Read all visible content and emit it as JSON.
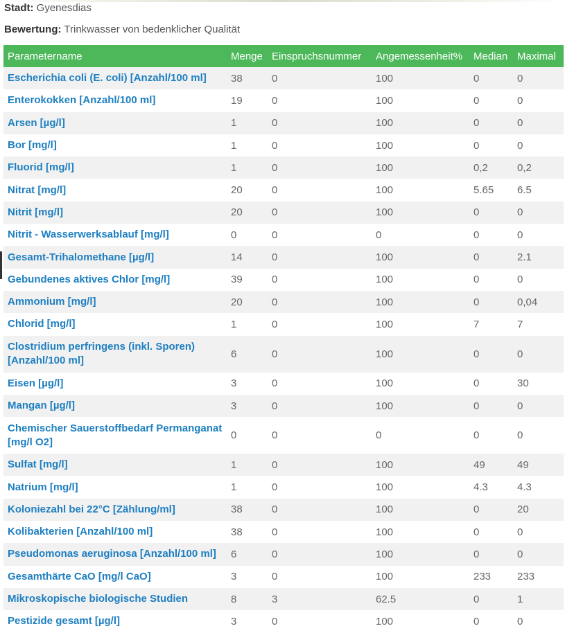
{
  "page": {
    "stadt_label": "Stadt:",
    "stadt_value": "Gyenesdias",
    "bewertung_label": "Bewertung:",
    "bewertung_value": "Trinkwasser von bedenklicher Qualität"
  },
  "colors": {
    "header_bg": "#4cb85a",
    "link": "#1e7fc1",
    "stripe": "#f1f1f1"
  },
  "table": {
    "headers": [
      "Parametername",
      "Menge",
      "Einspruchsnummer",
      "Angemessenheit%",
      "Median",
      "Maximal"
    ],
    "rows": [
      [
        "Escherichia coli (E. coli) [Anzahl/100 ml]",
        "38",
        "0",
        "100",
        "0",
        "0"
      ],
      [
        "Enterokokken [Anzahl/100 ml]",
        "19",
        "0",
        "100",
        "0",
        "0"
      ],
      [
        "Arsen [µg/l]",
        "1",
        "0",
        "100",
        "0",
        "0"
      ],
      [
        "Bor [mg/l]",
        "1",
        "0",
        "100",
        "0",
        "0"
      ],
      [
        "Fluorid [mg/l]",
        "1",
        "0",
        "100",
        "0,2",
        "0,2"
      ],
      [
        "Nitrat [mg/l]",
        "20",
        "0",
        "100",
        "5.65",
        "6.5"
      ],
      [
        "Nitrit [mg/l]",
        "20",
        "0",
        "100",
        "0",
        "0"
      ],
      [
        "Nitrit - Wasserwerksablauf [mg/l]",
        "0",
        "0",
        "0",
        "0",
        "0"
      ],
      [
        "Gesamt-Trihalomethane [µg/l]",
        "14",
        "0",
        "100",
        "0",
        "2.1"
      ],
      [
        "Gebundenes aktives Chlor [mg/l]",
        "39",
        "0",
        "100",
        "0",
        "0"
      ],
      [
        "Ammonium [mg/l]",
        "20",
        "0",
        "100",
        "0",
        "0,04"
      ],
      [
        "Chlorid [mg/l]",
        "1",
        "0",
        "100",
        "7",
        "7"
      ],
      [
        "Clostridium perfringens (inkl. Sporen) [Anzahl/100 ml]",
        "6",
        "0",
        "100",
        "0",
        "0"
      ],
      [
        "Eisen [µg/l]",
        "3",
        "0",
        "100",
        "0",
        "30"
      ],
      [
        "Mangan [µg/l]",
        "3",
        "0",
        "100",
        "0",
        "0"
      ],
      [
        "Chemischer Sauerstoffbedarf Permanganat [mg/l O2]",
        "0",
        "0",
        "0",
        "0",
        "0"
      ],
      [
        "Sulfat [mg/l]",
        "1",
        "0",
        "100",
        "49",
        "49"
      ],
      [
        "Natrium [mg/l]",
        "1",
        "0",
        "100",
        "4.3",
        "4.3"
      ],
      [
        "Koloniezahl bei 22°C [Zählung/ml]",
        "38",
        "0",
        "100",
        "0",
        "20"
      ],
      [
        "Kolibakterien [Anzahl/100 ml]",
        "38",
        "0",
        "100",
        "0",
        "0"
      ],
      [
        "Pseudomonas aeruginosa [Anzahl/100 ml]",
        "6",
        "0",
        "100",
        "0",
        "0"
      ],
      [
        "Gesamthärte CaO [mg/l CaO]",
        "3",
        "0",
        "100",
        "233",
        "233"
      ],
      [
        "Mikroskopische biologische Studien",
        "8",
        "3",
        "62.5",
        "0",
        "1"
      ],
      [
        "Pestizide gesamt [µg/l]",
        "3",
        "0",
        "100",
        "0",
        "0"
      ]
    ]
  }
}
